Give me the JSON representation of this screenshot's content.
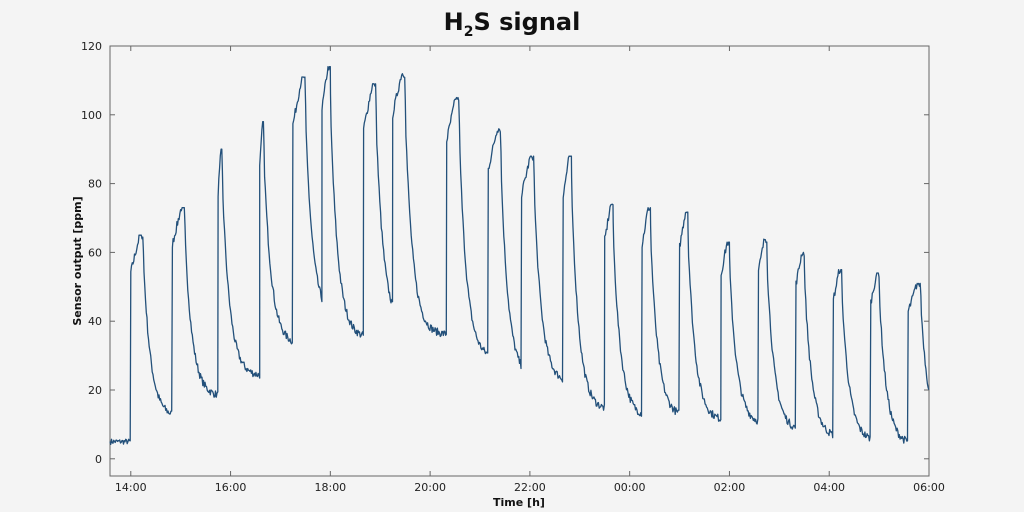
{
  "chart_data": {
    "type": "line",
    "title": "H2S signal",
    "title_parts": {
      "main": "H",
      "sub": "2",
      "rest": "S signal"
    },
    "xlabel": "Time [h]",
    "ylabel": "Sensor output [ppm]",
    "xlim": [
      "13:35",
      "06:00"
    ],
    "ylim": [
      -5,
      120
    ],
    "x_ticks": [
      "14:00",
      "16:00",
      "18:00",
      "20:00",
      "22:00",
      "00:00",
      "02:00",
      "04:00",
      "06:00"
    ],
    "y_ticks": [
      0,
      20,
      40,
      60,
      80,
      100,
      120
    ],
    "grid": false,
    "line_color": "#23507a",
    "series": [
      {
        "name": "",
        "cycles": [
          {
            "on": "14:00",
            "peak": 65,
            "off": "14:15",
            "base": 12
          },
          {
            "on": "14:50",
            "peak": 73,
            "off": "15:05",
            "base": 18
          },
          {
            "on": "15:45",
            "peak": 90,
            "off": "15:50",
            "base": 24
          },
          {
            "on": "16:35",
            "peak": 98,
            "off": "16:40",
            "base": 33
          },
          {
            "on": "17:15",
            "peak": 111,
            "off": "17:30",
            "base": 40
          },
          {
            "on": "17:50",
            "peak": 114,
            "off": "18:00",
            "base": 35
          },
          {
            "on": "18:40",
            "peak": 109,
            "off": "18:55",
            "base": 38
          },
          {
            "on": "19:15",
            "peak": 112,
            "off": "19:30",
            "base": 36
          },
          {
            "on": "20:20",
            "peak": 105,
            "off": "20:35",
            "base": 29
          },
          {
            "on": "21:10",
            "peak": 96,
            "off": "21:25",
            "base": 23
          },
          {
            "on": "21:50",
            "peak": 88,
            "off": "22:05",
            "base": 22
          },
          {
            "on": "22:40",
            "peak": 88,
            "off": "22:50",
            "base": 14
          },
          {
            "on": "23:30",
            "peak": 74,
            "off": "23:40",
            "base": 12
          },
          {
            "on": "00:15",
            "peak": 73,
            "off": "00:25",
            "base": 12
          },
          {
            "on": "01:00",
            "peak": 72,
            "off": "01:10",
            "base": 11
          },
          {
            "on": "01:50",
            "peak": 63,
            "off": "02:00",
            "base": 10
          },
          {
            "on": "02:35",
            "peak": 64,
            "off": "02:45",
            "base": 8
          },
          {
            "on": "03:20",
            "peak": 60,
            "off": "03:30",
            "base": 6
          },
          {
            "on": "04:05",
            "peak": 55,
            "off": "04:15",
            "base": 5
          },
          {
            "on": "04:50",
            "peak": 54,
            "off": "05:00",
            "base": 4
          },
          {
            "on": "05:35",
            "peak": 51,
            "off": "05:50",
            "base": 7
          }
        ]
      }
    ]
  }
}
